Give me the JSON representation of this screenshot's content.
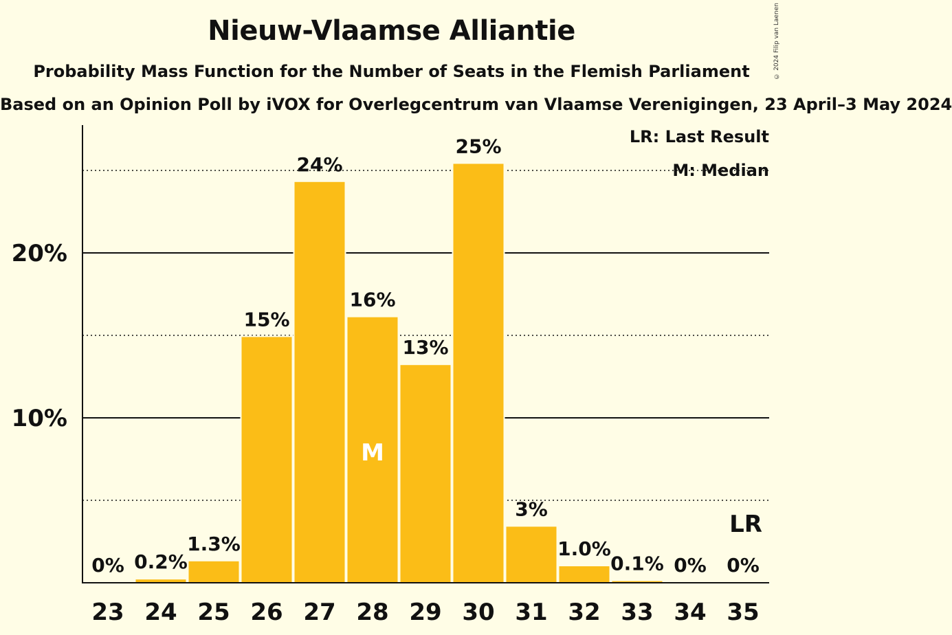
{
  "chart_data": {
    "type": "bar",
    "title": "Nieuw-Vlaamse Alliantie",
    "subtitle": "Probability Mass Function for the Number of Seats in the Flemish Parliament",
    "source": "Based on an Opinion Poll by iVOX for Overlegcentrum van Vlaamse Verenigingen, 23 April–3 May 2024",
    "copyright": "© 2024 Filip van Laenen",
    "categories": [
      "23",
      "24",
      "25",
      "26",
      "27",
      "28",
      "29",
      "30",
      "31",
      "32",
      "33",
      "34",
      "35"
    ],
    "values": [
      0,
      0.2,
      1.3,
      15,
      24,
      16,
      13,
      25,
      3,
      1.0,
      0.1,
      0,
      0
    ],
    "plot_values": [
      0,
      0.2,
      1.3,
      14.9,
      24.3,
      16.1,
      13.2,
      25.4,
      3.4,
      1.0,
      0.1,
      0,
      0
    ],
    "value_labels": [
      "0%",
      "0.2%",
      "1.3%",
      "15%",
      "24%",
      "16%",
      "13%",
      "25%",
      "3%",
      "1.0%",
      "0.1%",
      "0%",
      "0%"
    ],
    "y_ticks": [
      {
        "value": 10,
        "label": "10%"
      },
      {
        "value": 20,
        "label": "20%"
      }
    ],
    "dotted_lines": [
      5,
      15,
      25
    ],
    "ylim": [
      0,
      27.7
    ],
    "median_category": "28",
    "median_label": "M",
    "last_result_category": "35",
    "last_result_label": "LR",
    "legend": [
      "LR: Last Result",
      "M: Median"
    ],
    "bar_color": "#FBBD17",
    "median_label_color": "#FFFFFF",
    "background": "#FFFDE6"
  }
}
